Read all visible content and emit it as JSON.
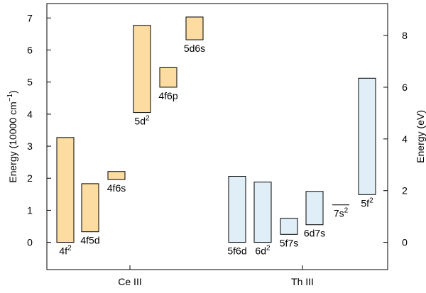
{
  "chart_data": {
    "type": "bar",
    "subtype": "floating-range",
    "left_axis": {
      "label_main": "Energy (10000 cm",
      "label_sup": "−1",
      "label_end": ")",
      "ylim": [
        -0.85,
        7.45
      ],
      "ticks": [
        0,
        1,
        2,
        3,
        4,
        5,
        6,
        7
      ]
    },
    "right_axis": {
      "label": "Energy (eV)",
      "ticks": [
        0,
        2,
        4,
        6,
        8
      ],
      "ev_to_10000cm": 0.80655
    },
    "groups": [
      {
        "label": "Ce III",
        "color": "#fcdca0"
      },
      {
        "label": "Th III",
        "color": "#e0eff7"
      }
    ],
    "bars": [
      {
        "group": 0,
        "base": "4f",
        "sup": "2",
        "bottom": 0.0,
        "top": 3.27,
        "label_pos": "below"
      },
      {
        "group": 0,
        "base": "4f5d",
        "sup": "",
        "bottom": 0.33,
        "top": 1.83,
        "label_pos": "below"
      },
      {
        "group": 0,
        "base": "4f6s",
        "sup": "",
        "bottom": 1.96,
        "top": 2.21,
        "label_pos": "below"
      },
      {
        "group": 0,
        "base": "5d",
        "sup": "2",
        "bottom": 4.05,
        "top": 6.77,
        "label_pos": "below"
      },
      {
        "group": 0,
        "base": "4f6p",
        "sup": "",
        "bottom": 4.84,
        "top": 5.45,
        "label_pos": "below"
      },
      {
        "group": 0,
        "base": "5d6s",
        "sup": "",
        "bottom": 6.32,
        "top": 7.03,
        "label_pos": "below"
      },
      {
        "group": 1,
        "base": "5f6d",
        "sup": "",
        "bottom": 0.0,
        "top": 2.06,
        "label_pos": "below"
      },
      {
        "group": 1,
        "base": "6d",
        "sup": "2",
        "bottom": 0.0,
        "top": 1.88,
        "label_pos": "below"
      },
      {
        "group": 1,
        "base": "5f7s",
        "sup": "",
        "bottom": 0.25,
        "top": 0.75,
        "label_pos": "below"
      },
      {
        "group": 1,
        "base": "6d7s",
        "sup": "",
        "bottom": 0.55,
        "top": 1.59,
        "label_pos": "below"
      },
      {
        "group": 1,
        "base": "7s",
        "sup": "2",
        "bottom": 1.17,
        "top": 1.17,
        "label_pos": "below"
      },
      {
        "group": 1,
        "base": "5f",
        "sup": "2",
        "bottom": 1.49,
        "top": 5.12,
        "label_pos": "below"
      }
    ]
  }
}
